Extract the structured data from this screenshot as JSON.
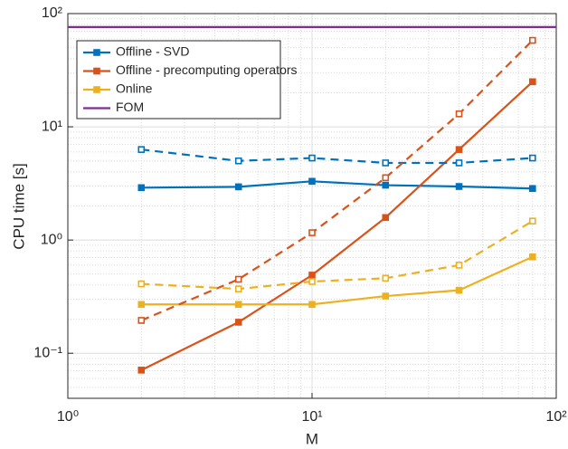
{
  "chart_data": {
    "type": "line",
    "xlabel": "M",
    "ylabel": "CPU time [s]",
    "x": [
      2,
      5,
      10,
      20,
      40,
      80
    ],
    "series": [
      {
        "name": "Offline - SVD",
        "color": "#0072bd",
        "marker": "filled",
        "values": [
          2.9,
          2.95,
          3.3,
          3.05,
          2.97,
          2.85
        ]
      },
      {
        "name": "Offline - precomputing operators",
        "color": "#d95319",
        "marker": "filled",
        "values": [
          0.071,
          0.188,
          0.49,
          1.58,
          6.3,
          25
        ]
      },
      {
        "name": "Online",
        "color": "#edb120",
        "marker": "filled",
        "values": [
          0.27,
          0.27,
          0.27,
          0.32,
          0.36,
          0.71
        ]
      },
      {
        "name": "FOM",
        "color": "#7e2f8e",
        "x": [
          1,
          100
        ],
        "values": [
          76,
          76
        ]
      },
      {
        "color": "#0072bd",
        "marker": "open",
        "dash": true,
        "values": [
          6.3,
          5.0,
          5.3,
          4.8,
          4.8,
          5.3
        ]
      },
      {
        "color": "#d95319",
        "marker": "open",
        "dash": true,
        "values": [
          0.195,
          0.45,
          1.16,
          3.55,
          13,
          58
        ]
      },
      {
        "color": "#edb120",
        "marker": "open",
        "dash": true,
        "values": [
          0.41,
          0.37,
          0.43,
          0.46,
          0.6,
          1.47
        ]
      }
    ],
    "xscale": "log",
    "yscale": "log",
    "xlim": [
      1,
      100
    ],
    "ylim": [
      0.04,
      100
    ],
    "xticks": [
      {
        "value": 1,
        "label": "10⁰"
      },
      {
        "value": 10,
        "label": "10¹"
      },
      {
        "value": 100,
        "label": "10²"
      }
    ],
    "yticks": [
      {
        "value": 0.1,
        "label": "10⁻¹"
      },
      {
        "value": 1,
        "label": "10⁰"
      },
      {
        "value": 10,
        "label": "10¹"
      },
      {
        "value": 100,
        "label": "10²"
      }
    ],
    "xminorticks": [
      2,
      3,
      4,
      5,
      6,
      7,
      8,
      9,
      20,
      30,
      40,
      50,
      60,
      70,
      80,
      90
    ],
    "yminorticks": [
      0.04,
      0.05,
      0.06,
      0.07,
      0.08,
      0.09,
      0.2,
      0.3,
      0.4,
      0.5,
      0.6,
      0.7,
      0.8,
      0.9,
      2,
      3,
      4,
      5,
      6,
      7,
      8,
      9,
      20,
      30,
      40,
      50,
      60,
      70,
      80,
      90
    ],
    "grid": true,
    "legend": "upper left"
  }
}
